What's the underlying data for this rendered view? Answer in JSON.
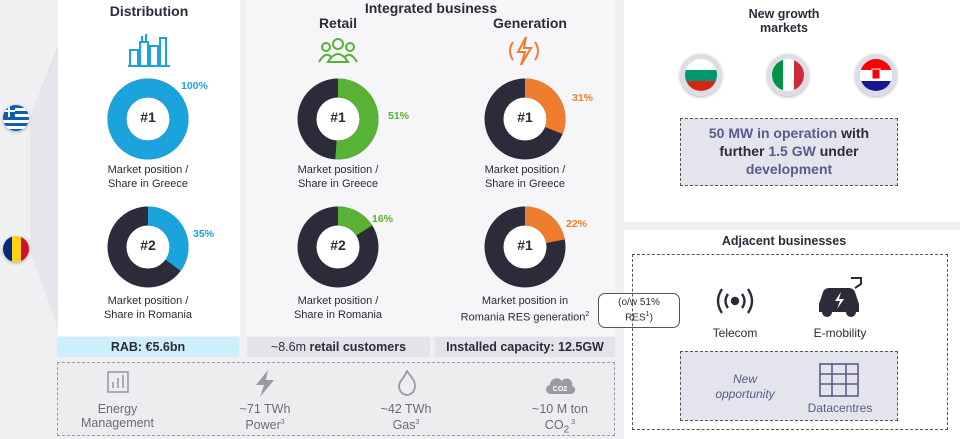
{
  "colors": {
    "blue": "#1aa3dc",
    "green": "#58b233",
    "orange": "#ee7d2f",
    "dark": "#2b2b3a",
    "purple": "#5a5a8c"
  },
  "header": {
    "integrated_business": "Integrated business"
  },
  "columns": {
    "distribution": {
      "title": "Distribution",
      "icon": "power-plant-icon"
    },
    "retail": {
      "title": "Retail",
      "icon": "people-icon"
    },
    "generation": {
      "title": "Generation",
      "icon": "lightning-icon"
    }
  },
  "donuts": {
    "dist_gr": {
      "rank": "#1",
      "pct_label": "100%",
      "pct": 100,
      "caption_l1": "Market position /",
      "caption_l2": "Share in Greece"
    },
    "dist_ro": {
      "rank": "#2",
      "pct_label": "35%",
      "pct": 35,
      "caption_l1": "Market position /",
      "caption_l2": "Share in Romania"
    },
    "ret_gr": {
      "rank": "#1",
      "pct_label": "51%",
      "pct": 51,
      "caption_l1": "Market position /",
      "caption_l2": "Share in Greece"
    },
    "ret_ro": {
      "rank": "#2",
      "pct_label": "16%",
      "pct": 16,
      "caption_l1": "Market position /",
      "caption_l2": "Share in Romania"
    },
    "gen_gr": {
      "rank": "#1",
      "pct_label": "31%",
      "pct": 31,
      "caption_l1": "Market position /",
      "caption_l2": "Share in Greece"
    },
    "gen_ro": {
      "rank": "#1",
      "pct_label": "22%",
      "pct": 22,
      "caption_l1": "Market position in",
      "caption_l2": "Romania RES generation",
      "caption_sup": "2"
    }
  },
  "callout": {
    "line1": "(o/w 51%",
    "line2": "RES",
    "sup": "1",
    "line2_end": ")"
  },
  "bars": {
    "rab": {
      "label": "RAB: ",
      "value": "€5.6bn"
    },
    "retail": {
      "label": "~8.6m ",
      "value": "retail customers"
    },
    "capacity": {
      "label": "Installed capacity: ",
      "value": "12.5GW"
    }
  },
  "bottom": {
    "energy": {
      "line1": "Energy",
      "line2": "Management",
      "icon": "bar-chart-icon"
    },
    "power": {
      "line1": "~71 TWh",
      "line2": "Power",
      "sup": "3",
      "icon": "lightning-icon"
    },
    "gas": {
      "line1": "~42 TWh",
      "line2": "Gas",
      "sup": "3",
      "icon": "flame-icon"
    },
    "co2": {
      "line1": "~10 M ton",
      "line2": "CO",
      "sub": "2",
      "sup": " 3",
      "icon": "co2-cloud-icon",
      "cloud_label": "CO2"
    }
  },
  "growth": {
    "title_l1": "New growth",
    "title_l2": "markets",
    "flags": [
      "Bulgaria",
      "Italy",
      "Croatia"
    ],
    "box": {
      "a": "50 MW in operation",
      "b": " with",
      "c": "further ",
      "d": "1.5 GW",
      "e": " under",
      "f": "development"
    }
  },
  "adjacent": {
    "title": "Adjacent businesses",
    "telecom": "Telecom",
    "emobility": "E-mobility",
    "new_l1": "New",
    "new_l2": "opportunity",
    "datacentres": "Datacentres"
  }
}
